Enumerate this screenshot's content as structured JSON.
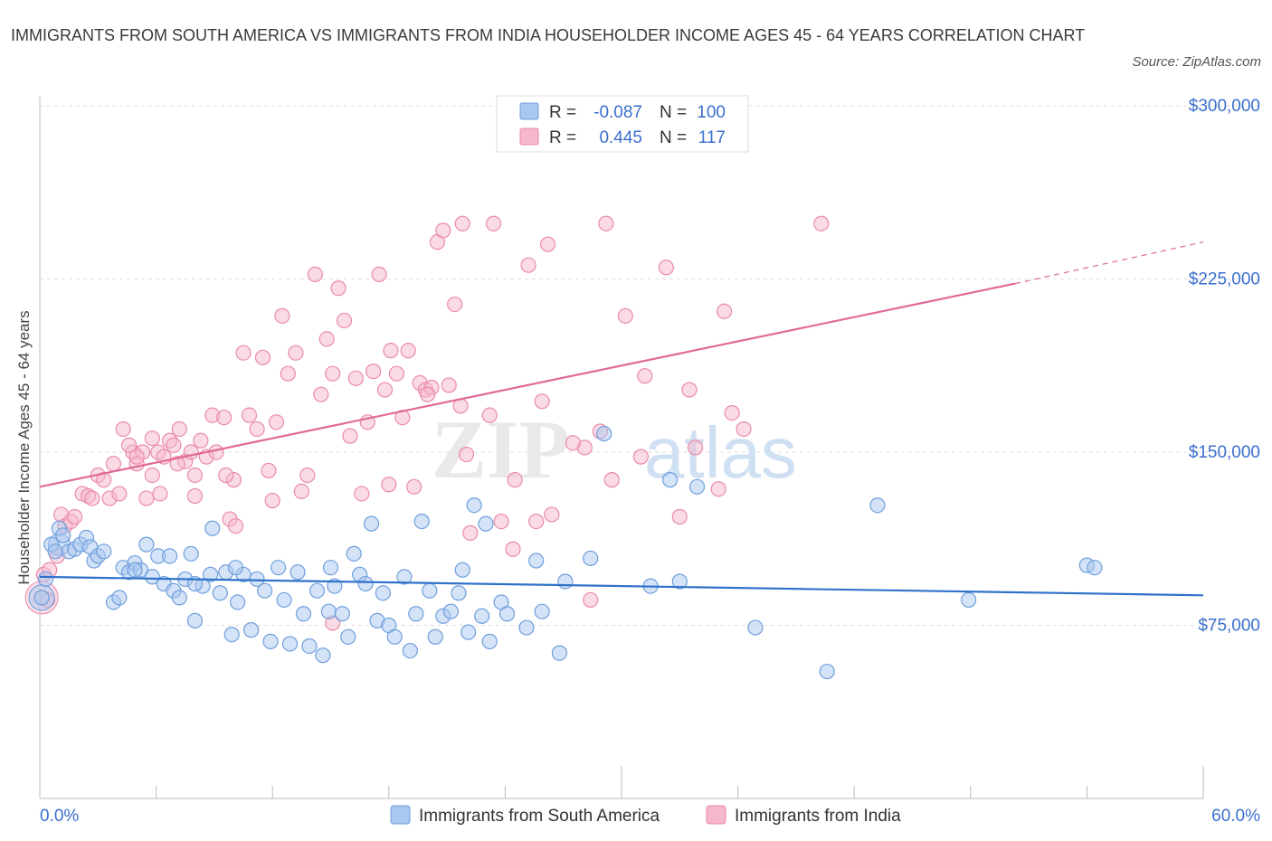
{
  "header": {
    "title": "IMMIGRANTS FROM SOUTH AMERICA VS IMMIGRANTS FROM INDIA HOUSEHOLDER INCOME AGES 45 - 64 YEARS CORRELATION CHART",
    "source": "Source: ZipAtlas.com"
  },
  "watermark": {
    "zip": "ZIP",
    "atlas": "atlas"
  },
  "legend_top": {
    "rows": [
      {
        "r_label": "R =",
        "r_value": "-0.087",
        "n_label": "N =",
        "n_value": "100"
      },
      {
        "r_label": "R =",
        "r_value": "0.445",
        "n_label": "N =",
        "n_value": "117"
      }
    ]
  },
  "legend_bottom": {
    "items": [
      "Immigrants from South America",
      "Immigrants from India"
    ]
  },
  "colors": {
    "blue_fill": "#a9c7ef",
    "blue_stroke": "#6f9fdc",
    "blue_line": "#2f72c9",
    "pink_fill": "#f5b7cb",
    "pink_stroke": "#ea8aaa",
    "pink_line": "#e0699a",
    "value_text": "#3b6fce"
  },
  "chart_data": {
    "type": "scatter",
    "title": "IMMIGRANTS FROM SOUTH AMERICA VS IMMIGRANTS FROM INDIA HOUSEHOLDER INCOME AGES 45 - 64 YEARS CORRELATION CHART",
    "xlabel": "",
    "ylabel": "Householder Income Ages 45 - 64 years",
    "xlim": [
      0,
      60
    ],
    "ylim": [
      0,
      300000
    ],
    "x_tick_labels": [
      "0.0%",
      "60.0%"
    ],
    "y_ticks": [
      75000,
      150000,
      225000,
      300000
    ],
    "y_tick_labels": [
      "$75,000",
      "$150,000",
      "$225,000",
      "$300,000"
    ],
    "grid": true,
    "legend": "top-center",
    "series": [
      {
        "name": "Immigrants from South America",
        "r": -0.087,
        "n": 100,
        "trend": {
          "x": [
            0,
            60
          ],
          "y": [
            96000,
            88000
          ]
        },
        "points": [
          [
            0.1,
            87000
          ],
          [
            0.3,
            95000
          ],
          [
            0.6,
            110000
          ],
          [
            0.8,
            107000
          ],
          [
            1.0,
            117000
          ],
          [
            1.2,
            114000
          ],
          [
            1.5,
            107000
          ],
          [
            1.8,
            108000
          ],
          [
            2.1,
            110000
          ],
          [
            2.4,
            113000
          ],
          [
            2.6,
            109000
          ],
          [
            2.8,
            103000
          ],
          [
            3.0,
            105000
          ],
          [
            3.3,
            107000
          ],
          [
            3.8,
            85000
          ],
          [
            4.1,
            87000
          ],
          [
            4.3,
            100000
          ],
          [
            4.6,
            98000
          ],
          [
            4.9,
            102000
          ],
          [
            5.2,
            99000
          ],
          [
            5.5,
            110000
          ],
          [
            5.8,
            96000
          ],
          [
            6.1,
            105000
          ],
          [
            6.4,
            93000
          ],
          [
            6.7,
            105000
          ],
          [
            6.9,
            90000
          ],
          [
            7.2,
            87000
          ],
          [
            7.5,
            95000
          ],
          [
            7.8,
            106000
          ],
          [
            8.0,
            77000
          ],
          [
            8.4,
            92000
          ],
          [
            8.8,
            97000
          ],
          [
            8.9,
            117000
          ],
          [
            9.3,
            89000
          ],
          [
            9.6,
            98000
          ],
          [
            9.9,
            71000
          ],
          [
            10.2,
            85000
          ],
          [
            10.5,
            97000
          ],
          [
            10.9,
            73000
          ],
          [
            11.2,
            95000
          ],
          [
            11.6,
            90000
          ],
          [
            11.9,
            68000
          ],
          [
            12.3,
            100000
          ],
          [
            12.6,
            86000
          ],
          [
            12.9,
            67000
          ],
          [
            13.3,
            98000
          ],
          [
            13.6,
            80000
          ],
          [
            13.9,
            66000
          ],
          [
            14.3,
            90000
          ],
          [
            14.6,
            62000
          ],
          [
            14.9,
            81000
          ],
          [
            15.2,
            92000
          ],
          [
            15.6,
            80000
          ],
          [
            15.9,
            70000
          ],
          [
            16.2,
            106000
          ],
          [
            16.5,
            97000
          ],
          [
            16.8,
            93000
          ],
          [
            17.1,
            119000
          ],
          [
            17.4,
            77000
          ],
          [
            17.7,
            89000
          ],
          [
            18.0,
            75000
          ],
          [
            18.3,
            70000
          ],
          [
            18.8,
            96000
          ],
          [
            19.1,
            64000
          ],
          [
            19.4,
            80000
          ],
          [
            19.7,
            120000
          ],
          [
            20.1,
            90000
          ],
          [
            20.4,
            70000
          ],
          [
            20.8,
            79000
          ],
          [
            21.2,
            81000
          ],
          [
            21.6,
            89000
          ],
          [
            21.8,
            99000
          ],
          [
            22.1,
            72000
          ],
          [
            22.4,
            127000
          ],
          [
            22.8,
            79000
          ],
          [
            23.2,
            68000
          ],
          [
            23.8,
            85000
          ],
          [
            24.1,
            80000
          ],
          [
            25.1,
            74000
          ],
          [
            25.6,
            103000
          ],
          [
            25.9,
            81000
          ],
          [
            26.8,
            63000
          ],
          [
            27.1,
            94000
          ],
          [
            28.4,
            104000
          ],
          [
            29.1,
            158000
          ],
          [
            31.5,
            92000
          ],
          [
            32.5,
            138000
          ],
          [
            33.0,
            94000
          ],
          [
            33.9,
            135000
          ],
          [
            36.9,
            74000
          ],
          [
            40.6,
            55000
          ],
          [
            43.2,
            127000
          ],
          [
            47.9,
            86000
          ],
          [
            54.0,
            101000
          ],
          [
            54.4,
            100000
          ],
          [
            23.0,
            119000
          ],
          [
            15.0,
            100000
          ],
          [
            10.1,
            100000
          ],
          [
            8.0,
            93000
          ],
          [
            4.9,
            99000
          ]
        ]
      },
      {
        "name": "Immigrants from India",
        "r": 0.445,
        "n": 117,
        "trend": {
          "x": [
            0,
            50.3,
            60
          ],
          "y": [
            135000,
            223000,
            241000
          ]
        },
        "points": [
          [
            0.2,
            97000
          ],
          [
            0.5,
            99000
          ],
          [
            0.9,
            105000
          ],
          [
            1.1,
            123000
          ],
          [
            1.3,
            118000
          ],
          [
            1.6,
            120000
          ],
          [
            1.8,
            122000
          ],
          [
            2.2,
            132000
          ],
          [
            2.5,
            131000
          ],
          [
            2.7,
            130000
          ],
          [
            3.0,
            140000
          ],
          [
            3.3,
            138000
          ],
          [
            3.6,
            130000
          ],
          [
            3.8,
            145000
          ],
          [
            4.1,
            132000
          ],
          [
            4.3,
            160000
          ],
          [
            4.8,
            150000
          ],
          [
            5.0,
            145000
          ],
          [
            5.3,
            150000
          ],
          [
            5.5,
            130000
          ],
          [
            5.8,
            156000
          ],
          [
            6.1,
            150000
          ],
          [
            6.4,
            148000
          ],
          [
            6.7,
            155000
          ],
          [
            6.9,
            153000
          ],
          [
            7.2,
            160000
          ],
          [
            7.5,
            146000
          ],
          [
            7.8,
            150000
          ],
          [
            8.0,
            140000
          ],
          [
            8.3,
            155000
          ],
          [
            8.6,
            148000
          ],
          [
            8.9,
            166000
          ],
          [
            9.1,
            150000
          ],
          [
            9.5,
            165000
          ],
          [
            9.8,
            121000
          ],
          [
            10.1,
            118000
          ],
          [
            10.5,
            193000
          ],
          [
            10.8,
            166000
          ],
          [
            11.2,
            160000
          ],
          [
            11.5,
            191000
          ],
          [
            11.8,
            142000
          ],
          [
            12.2,
            163000
          ],
          [
            12.5,
            209000
          ],
          [
            12.8,
            184000
          ],
          [
            13.2,
            193000
          ],
          [
            13.5,
            133000
          ],
          [
            13.8,
            140000
          ],
          [
            14.2,
            227000
          ],
          [
            14.5,
            175000
          ],
          [
            14.8,
            199000
          ],
          [
            15.1,
            184000
          ],
          [
            15.4,
            221000
          ],
          [
            15.7,
            207000
          ],
          [
            16.0,
            157000
          ],
          [
            16.3,
            182000
          ],
          [
            16.6,
            132000
          ],
          [
            16.9,
            163000
          ],
          [
            17.2,
            185000
          ],
          [
            17.5,
            227000
          ],
          [
            17.8,
            177000
          ],
          [
            18.1,
            194000
          ],
          [
            18.4,
            184000
          ],
          [
            18.7,
            165000
          ],
          [
            19.0,
            194000
          ],
          [
            19.3,
            135000
          ],
          [
            19.6,
            180000
          ],
          [
            19.9,
            177000
          ],
          [
            20.2,
            178000
          ],
          [
            20.5,
            241000
          ],
          [
            20.8,
            246000
          ],
          [
            21.1,
            179000
          ],
          [
            21.4,
            214000
          ],
          [
            21.7,
            170000
          ],
          [
            21.8,
            249000
          ],
          [
            22.2,
            115000
          ],
          [
            23.2,
            166000
          ],
          [
            23.4,
            249000
          ],
          [
            23.8,
            120000
          ],
          [
            24.4,
            108000
          ],
          [
            25.2,
            231000
          ],
          [
            25.6,
            120000
          ],
          [
            25.9,
            172000
          ],
          [
            26.2,
            240000
          ],
          [
            26.4,
            123000
          ],
          [
            28.1,
            152000
          ],
          [
            28.4,
            86000
          ],
          [
            28.9,
            159000
          ],
          [
            29.2,
            249000
          ],
          [
            30.2,
            209000
          ],
          [
            31.2,
            183000
          ],
          [
            32.3,
            230000
          ],
          [
            33.0,
            122000
          ],
          [
            33.5,
            177000
          ],
          [
            33.8,
            152000
          ],
          [
            35.0,
            134000
          ],
          [
            35.3,
            211000
          ],
          [
            35.7,
            167000
          ],
          [
            36.3,
            160000
          ],
          [
            40.3,
            249000
          ],
          [
            10.0,
            138000
          ],
          [
            9.6,
            140000
          ],
          [
            8.0,
            131000
          ],
          [
            7.1,
            145000
          ],
          [
            6.2,
            132000
          ],
          [
            5.8,
            140000
          ],
          [
            5.0,
            148000
          ],
          [
            4.6,
            153000
          ],
          [
            12.0,
            129000
          ],
          [
            15.1,
            76000
          ],
          [
            18.0,
            136000
          ],
          [
            20.0,
            175000
          ],
          [
            22.0,
            149000
          ],
          [
            24.5,
            138000
          ],
          [
            27.5,
            154000
          ],
          [
            29.5,
            138000
          ],
          [
            31.0,
            148000
          ],
          [
            0.4,
            86000
          ]
        ]
      }
    ]
  }
}
